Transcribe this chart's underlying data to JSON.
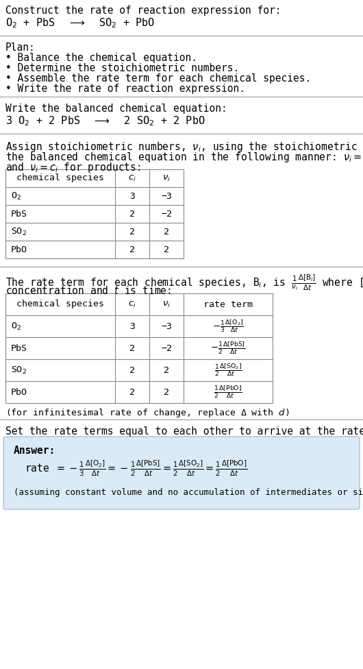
{
  "bg_color": "#ffffff",
  "text_color": "#000000",
  "title_line1": "Construct the rate of reaction expression for:",
  "plan_header": "Plan:",
  "plan_items": [
    "• Balance the chemical equation.",
    "• Determine the stoichiometric numbers.",
    "• Assemble the rate term for each chemical species.",
    "• Write the rate of reaction expression."
  ],
  "balanced_header": "Write the balanced chemical equation:",
  "assign_text1": "Assign stoichiometric numbers, $\\nu_i$, using the stoichiometric coefficients, $c_i$, from",
  "assign_text2": "the balanced chemical equation in the following manner: $\\nu_i = -c_i$ for reactants",
  "assign_text3": "and $\\nu_i = c_i$ for products:",
  "table1_headers": [
    "chemical species",
    "$c_i$",
    "$\\nu_i$"
  ],
  "table1_rows": [
    [
      "O$_2$",
      "3",
      "−3"
    ],
    [
      "PbS",
      "2",
      "−2"
    ],
    [
      "SO$_2$",
      "2",
      "2"
    ],
    [
      "PbO",
      "2",
      "2"
    ]
  ],
  "rate_text1": "The rate term for each chemical species, B$_i$, is $\\frac{1}{\\nu_i}\\frac{\\Delta[\\mathrm{B}_i]}{\\Delta t}$ where [B$_i$] is the amount",
  "rate_text2": "concentration and $t$ is time:",
  "table2_headers": [
    "chemical species",
    "$c_i$",
    "$\\nu_i$",
    "rate term"
  ],
  "table2_rows": [
    [
      "O$_2$",
      "3",
      "−3",
      "$-\\frac{1}{3}\\frac{\\Delta[\\mathrm{O}_2]}{\\Delta t}$"
    ],
    [
      "PbS",
      "2",
      "−2",
      "$-\\frac{1}{2}\\frac{\\Delta[\\mathrm{PbS}]}{\\Delta t}$"
    ],
    [
      "SO$_2$",
      "2",
      "2",
      "$\\frac{1}{2}\\frac{\\Delta[\\mathrm{SO}_2]}{\\Delta t}$"
    ],
    [
      "PbO",
      "2",
      "2",
      "$\\frac{1}{2}\\frac{\\Delta[\\mathrm{PbO}]}{\\Delta t}$"
    ]
  ],
  "infinitesimal_note": "(for infinitesimal rate of change, replace Δ with $d$)",
  "set_rate_text": "Set the rate terms equal to each other to arrive at the rate expression:",
  "answer_box_color": "#dbeaf7",
  "answer_label": "Answer:",
  "answer_note": "(assuming constant volume and no accumulation of intermediates or side products)"
}
